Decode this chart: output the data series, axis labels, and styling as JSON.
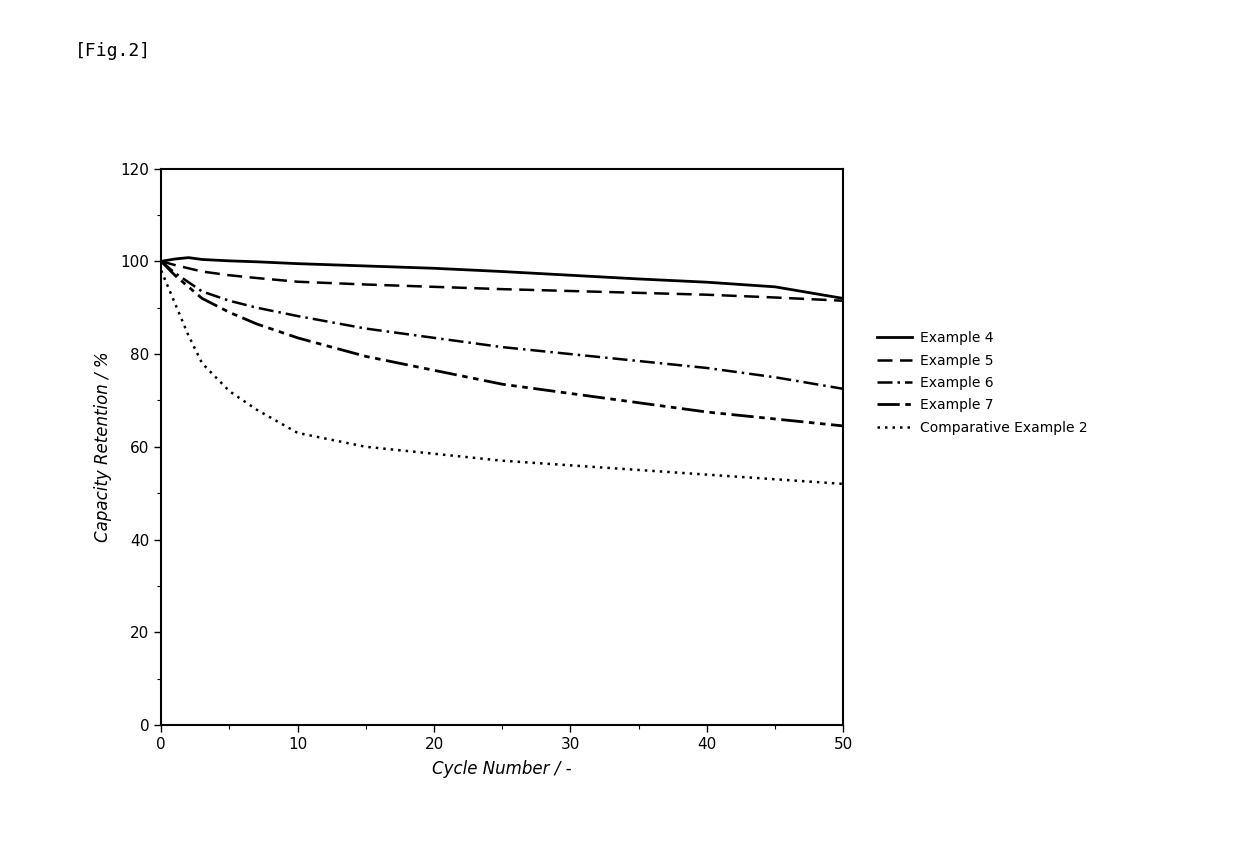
{
  "xlabel": "Cycle Number / -",
  "ylabel": "Capacity Retention / %",
  "xlim": [
    0,
    50
  ],
  "ylim": [
    0,
    120
  ],
  "xticks": [
    0,
    10,
    20,
    30,
    40,
    50
  ],
  "yticks": [
    0,
    20,
    40,
    60,
    80,
    100,
    120
  ],
  "background_color": "#ffffff",
  "fig_label": "[Fig.2]",
  "series": [
    {
      "label": "Example 4",
      "linestyle": "solid",
      "linewidth": 2.0,
      "color": "#000000",
      "x": [
        0,
        1,
        2,
        3,
        5,
        7,
        10,
        15,
        20,
        25,
        30,
        35,
        40,
        45,
        50
      ],
      "y": [
        100,
        100.5,
        100.8,
        100.4,
        100.1,
        99.9,
        99.5,
        99.0,
        98.5,
        97.8,
        97.0,
        96.2,
        95.5,
        94.5,
        92.0
      ]
    },
    {
      "label": "Example 5",
      "linestyle": "dashed",
      "linewidth": 1.8,
      "color": "#000000",
      "x": [
        0,
        1,
        2,
        3,
        5,
        7,
        10,
        15,
        20,
        25,
        30,
        35,
        40,
        45,
        50
      ],
      "y": [
        100,
        99.2,
        98.5,
        97.8,
        97.0,
        96.4,
        95.6,
        95.0,
        94.5,
        94.0,
        93.6,
        93.2,
        92.8,
        92.2,
        91.5
      ]
    },
    {
      "label": "Example 6",
      "linestyle": "dashdot",
      "linewidth": 1.8,
      "color": "#000000",
      "x": [
        0,
        1,
        2,
        3,
        5,
        7,
        10,
        15,
        20,
        25,
        30,
        35,
        40,
        45,
        50
      ],
      "y": [
        100,
        97.5,
        95.5,
        93.5,
        91.5,
        90.0,
        88.2,
        85.5,
        83.5,
        81.5,
        80.0,
        78.5,
        77.0,
        75.0,
        72.5
      ]
    },
    {
      "label": "Example 7",
      "linestyle": "dashdotdot",
      "linewidth": 2.0,
      "color": "#000000",
      "x": [
        0,
        1,
        2,
        3,
        5,
        7,
        10,
        15,
        20,
        25,
        30,
        35,
        40,
        45,
        50
      ],
      "y": [
        100,
        97.0,
        94.5,
        92.0,
        89.0,
        86.5,
        83.5,
        79.5,
        76.5,
        73.5,
        71.5,
        69.5,
        67.5,
        66.0,
        64.5
      ]
    },
    {
      "label": "Comparative Example 2",
      "linestyle": "dotted",
      "linewidth": 1.8,
      "color": "#000000",
      "x": [
        0,
        1,
        2,
        3,
        5,
        7,
        10,
        15,
        20,
        25,
        30,
        35,
        40,
        45,
        50
      ],
      "y": [
        98,
        91,
        84,
        78,
        72,
        68,
        63,
        60,
        58.5,
        57.0,
        56.0,
        55.0,
        54.0,
        53.0,
        52.0
      ]
    }
  ]
}
